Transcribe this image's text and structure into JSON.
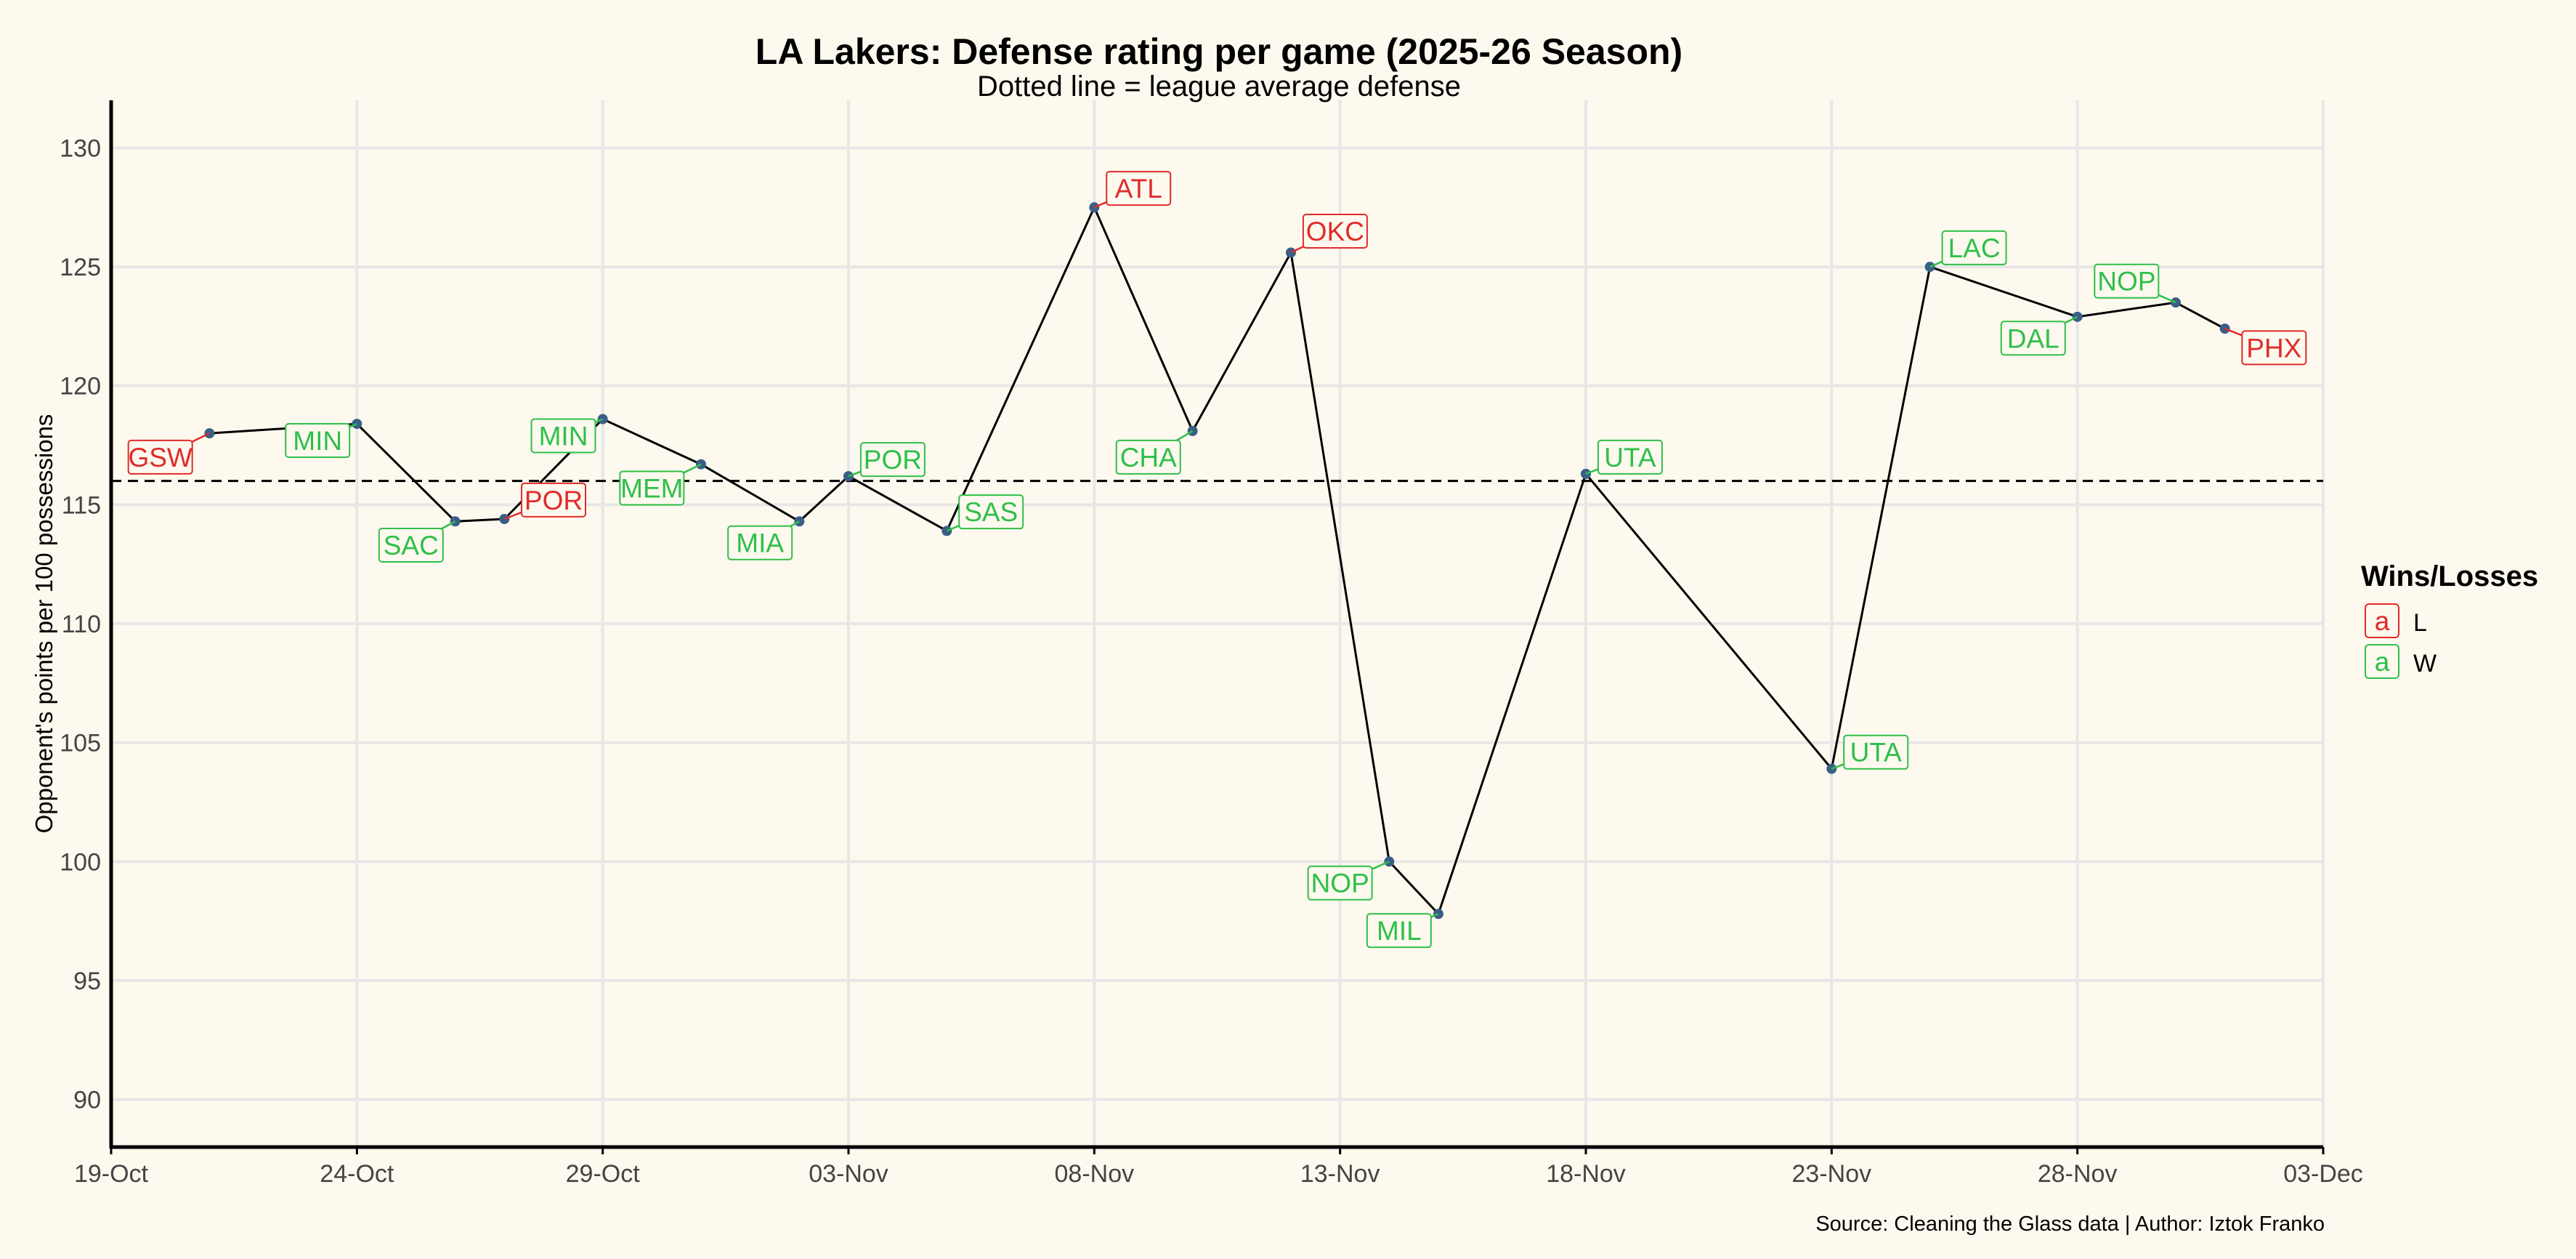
{
  "chart_data": {
    "type": "line",
    "title": "LA Lakers: Defense rating per game (2025-26 Season)",
    "subtitle": "Dotted line = league average defense",
    "ylabel": "Opponent's points per 100 possessions",
    "xlabel": "",
    "caption": "Source: Cleaning the Glass data | Author: Iztok Franko",
    "ylim": [
      88,
      132
    ],
    "yticks": [
      90,
      95,
      100,
      105,
      110,
      115,
      120,
      125,
      130
    ],
    "xlim_days": [
      0,
      45
    ],
    "xticks": [
      {
        "day": 0,
        "label": "19-Oct"
      },
      {
        "day": 5,
        "label": "24-Oct"
      },
      {
        "day": 10,
        "label": "29-Oct"
      },
      {
        "day": 15,
        "label": "03-Nov"
      },
      {
        "day": 20,
        "label": "08-Nov"
      },
      {
        "day": 25,
        "label": "13-Nov"
      },
      {
        "day": 30,
        "label": "18-Nov"
      },
      {
        "day": 35,
        "label": "23-Nov"
      },
      {
        "day": 40,
        "label": "28-Nov"
      },
      {
        "day": 45,
        "label": "03-Dec"
      }
    ],
    "league_average": 116,
    "legend": {
      "title": "Wins/Losses",
      "items": [
        {
          "key": "L",
          "symbol": "a",
          "label": "L"
        },
        {
          "key": "W",
          "symbol": "a",
          "label": "W"
        }
      ]
    },
    "colors": {
      "L": "#e02b2b",
      "W": "#2fbf4a",
      "point": "#3a5f86",
      "line": "#000000",
      "grid": "#e8e6e6",
      "background": "#fdf9ee"
    },
    "games": [
      {
        "day": 2,
        "value": 118.0,
        "opponent": "GSW",
        "result": "L",
        "label_day": 1.0,
        "label_value": 117.0
      },
      {
        "day": 5,
        "value": 118.4,
        "opponent": "MIN",
        "result": "W",
        "label_day": 4.2,
        "label_value": 117.7
      },
      {
        "day": 7,
        "value": 114.3,
        "opponent": "SAC",
        "result": "W",
        "label_day": 6.1,
        "label_value": 113.3
      },
      {
        "day": 8,
        "value": 114.4,
        "opponent": "POR",
        "result": "L",
        "label_day": 9.0,
        "label_value": 115.2
      },
      {
        "day": 10,
        "value": 118.6,
        "opponent": "MIN",
        "result": "W",
        "label_day": 9.2,
        "label_value": 117.9
      },
      {
        "day": 12,
        "value": 116.7,
        "opponent": "MEM",
        "result": "W",
        "label_day": 11.0,
        "label_value": 115.7
      },
      {
        "day": 14,
        "value": 114.3,
        "opponent": "MIA",
        "result": "W",
        "label_day": 13.2,
        "label_value": 113.4
      },
      {
        "day": 15,
        "value": 116.2,
        "opponent": "POR",
        "result": "W",
        "label_day": 15.9,
        "label_value": 116.9
      },
      {
        "day": 17,
        "value": 113.9,
        "opponent": "SAS",
        "result": "W",
        "label_day": 17.9,
        "label_value": 114.7
      },
      {
        "day": 20,
        "value": 127.5,
        "opponent": "ATL",
        "result": "L",
        "label_day": 20.9,
        "label_value": 128.3
      },
      {
        "day": 22,
        "value": 118.1,
        "opponent": "CHA",
        "result": "W",
        "label_day": 21.1,
        "label_value": 117.0
      },
      {
        "day": 24,
        "value": 125.6,
        "opponent": "OKC",
        "result": "L",
        "label_day": 24.9,
        "label_value": 126.5
      },
      {
        "day": 26,
        "value": 100.0,
        "opponent": "NOP",
        "result": "W",
        "label_day": 25.0,
        "label_value": 99.1
      },
      {
        "day": 27,
        "value": 97.8,
        "opponent": "MIL",
        "result": "W",
        "label_day": 26.2,
        "label_value": 97.1
      },
      {
        "day": 30,
        "value": 116.3,
        "opponent": "UTA",
        "result": "W",
        "label_day": 30.9,
        "label_value": 117.0
      },
      {
        "day": 35,
        "value": 103.9,
        "opponent": "UTA",
        "result": "W",
        "label_day": 35.9,
        "label_value": 104.6
      },
      {
        "day": 37,
        "value": 125.0,
        "opponent": "LAC",
        "result": "W",
        "label_day": 37.9,
        "label_value": 125.8
      },
      {
        "day": 40,
        "value": 122.9,
        "opponent": "DAL",
        "result": "W",
        "label_day": 39.1,
        "label_value": 122.0
      },
      {
        "day": 42,
        "value": 123.5,
        "opponent": "NOP",
        "result": "W",
        "label_day": 41.0,
        "label_value": 124.4
      },
      {
        "day": 43,
        "value": 122.4,
        "opponent": "PHX",
        "result": "L",
        "label_day": 44.0,
        "label_value": 121.6
      }
    ]
  }
}
